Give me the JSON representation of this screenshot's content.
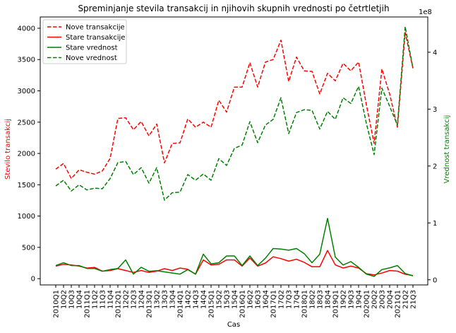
{
  "chart_data": {
    "type": "line",
    "title": "Spreminjanje stevila transakcij in njihovih skupnih vrednosti po četrtletjih",
    "xlabel": "Cas",
    "ylabel_left": "Stevilo transakcij",
    "ylabel_right": "Vrednost transakcij",
    "right_axis_offset_text": "1e8",
    "ylim_left": [
      -100,
      4180
    ],
    "ylim_right": [
      -0.09,
      4.62
    ],
    "yticks_left": [
      0,
      500,
      1000,
      1500,
      2000,
      2500,
      3000,
      3500,
      4000
    ],
    "yticks_right": [
      0,
      1,
      2,
      3,
      4
    ],
    "categories": [
      "2010Q1",
      "10Q2",
      "10Q3",
      "10Q4",
      "2011Q1",
      "11Q2",
      "11Q3",
      "11Q4",
      "2012Q1",
      "12Q2",
      "12Q3",
      "12Q4",
      "2013Q1",
      "13Q2",
      "13Q3",
      "13Q4",
      "2014Q1",
      "14Q2",
      "14Q3",
      "14Q4",
      "2015Q1",
      "15Q2",
      "15Q3",
      "15Q4",
      "2016Q1",
      "16Q2",
      "16Q3",
      "16Q4",
      "2017Q1",
      "17Q2",
      "17Q3",
      "17Q4",
      "2018Q1",
      "18Q2",
      "18Q3",
      "18Q4",
      "2019Q1",
      "19Q2",
      "19Q3",
      "19Q4",
      "2020Q1",
      "20Q2",
      "20Q3",
      "20Q4",
      "2021Q1",
      "21Q2",
      "21Q3"
    ],
    "legend_position": "upper-left",
    "grid": false,
    "series": [
      {
        "name": "Nove transakcije",
        "axis": "left",
        "color": "#ff0000",
        "style": "dashed",
        "values": [
          1750,
          1840,
          1600,
          1740,
          1700,
          1670,
          1720,
          1920,
          2560,
          2570,
          2380,
          2510,
          2280,
          2470,
          1850,
          2160,
          2170,
          2550,
          2420,
          2500,
          2420,
          2850,
          2660,
          3060,
          3060,
          3450,
          3060,
          3460,
          3500,
          3810,
          3150,
          3540,
          3320,
          3310,
          2950,
          3280,
          3160,
          3440,
          3320,
          3460,
          2780,
          2160,
          3350,
          2950,
          2420,
          3930,
          3360
        ]
      },
      {
        "name": "Stare transakcije",
        "axis": "left",
        "color": "#ff0000",
        "style": "solid",
        "values": [
          200,
          230,
          220,
          200,
          170,
          180,
          120,
          130,
          160,
          130,
          100,
          130,
          100,
          120,
          160,
          130,
          170,
          150,
          70,
          300,
          220,
          230,
          300,
          300,
          200,
          330,
          200,
          250,
          350,
          320,
          280,
          310,
          260,
          190,
          190,
          450,
          220,
          170,
          200,
          170,
          80,
          60,
          90,
          130,
          120,
          70,
          50
        ]
      },
      {
        "name": "Stare vrednost",
        "axis": "right",
        "color": "#008000",
        "style": "solid",
        "values": [
          0.25,
          0.3,
          0.25,
          0.25,
          0.2,
          0.2,
          0.15,
          0.18,
          0.2,
          0.35,
          0.1,
          0.22,
          0.15,
          0.16,
          0.14,
          0.12,
          0.1,
          0.18,
          0.1,
          0.45,
          0.28,
          0.3,
          0.42,
          0.42,
          0.25,
          0.42,
          0.25,
          0.38,
          0.55,
          0.54,
          0.52,
          0.55,
          0.46,
          0.3,
          0.45,
          1.08,
          0.4,
          0.26,
          0.32,
          0.22,
          0.1,
          0.06,
          0.18,
          0.21,
          0.25,
          0.11,
          0.07
        ]
      },
      {
        "name": "Nove vrednost",
        "axis": "right",
        "color": "#008000",
        "style": "dashed",
        "values": [
          1.65,
          1.75,
          1.56,
          1.67,
          1.58,
          1.61,
          1.6,
          1.78,
          2.06,
          2.08,
          1.85,
          1.97,
          1.7,
          1.97,
          1.4,
          1.53,
          1.54,
          1.85,
          1.75,
          1.86,
          1.75,
          2.13,
          2.01,
          2.31,
          2.37,
          2.78,
          2.41,
          2.72,
          2.82,
          3.2,
          2.57,
          2.94,
          2.99,
          2.98,
          2.65,
          2.96,
          2.82,
          3.2,
          3.1,
          3.4,
          2.75,
          2.2,
          3.37,
          3.05,
          2.72,
          4.45,
          3.72
        ]
      }
    ]
  }
}
